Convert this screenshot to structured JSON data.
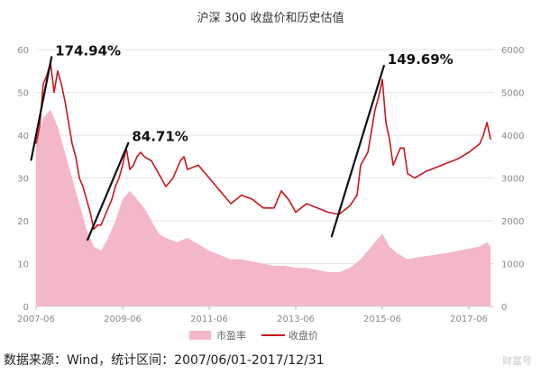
{
  "chart_data": {
    "type": "area",
    "title": "沪深 300 收盘价和历史估值",
    "x_ticks": [
      "2007-06",
      "2009-06",
      "2011-06",
      "2013-06",
      "2015-06",
      "2017-06"
    ],
    "x_range": [
      "2007-06-01",
      "2017-12-31"
    ],
    "y_left": {
      "min": 0,
      "max": 60,
      "ticks": [
        0,
        10,
        20,
        30,
        40,
        50,
        60
      ]
    },
    "y_right": {
      "min": 0,
      "max": 6000,
      "ticks": [
        0,
        1000,
        2000,
        3000,
        4000,
        5000,
        6000
      ]
    },
    "legend": {
      "placement": "bottom-center"
    },
    "grid": true,
    "series": [
      {
        "name": "市盈率",
        "type": "area",
        "axis": "left",
        "color": "#f4b7c7",
        "points": [
          [
            "2007-06",
            38
          ],
          [
            "2007-08",
            44
          ],
          [
            "2007-10",
            46
          ],
          [
            "2007-12",
            42
          ],
          [
            "2008-02",
            36
          ],
          [
            "2008-04",
            30
          ],
          [
            "2008-06",
            24
          ],
          [
            "2008-08",
            18
          ],
          [
            "2008-10",
            14
          ],
          [
            "2008-12",
            13
          ],
          [
            "2009-02",
            16
          ],
          [
            "2009-04",
            20
          ],
          [
            "2009-06",
            25
          ],
          [
            "2009-08",
            27
          ],
          [
            "2009-10",
            25
          ],
          [
            "2009-12",
            23
          ],
          [
            "2010-02",
            20
          ],
          [
            "2010-04",
            17
          ],
          [
            "2010-06",
            16
          ],
          [
            "2010-09",
            15
          ],
          [
            "2010-12",
            16
          ],
          [
            "2011-03",
            14.5
          ],
          [
            "2011-06",
            13
          ],
          [
            "2011-09",
            12
          ],
          [
            "2011-12",
            11
          ],
          [
            "2012-03",
            11
          ],
          [
            "2012-06",
            10.5
          ],
          [
            "2012-09",
            10
          ],
          [
            "2012-12",
            9.5
          ],
          [
            "2013-03",
            9.5
          ],
          [
            "2013-06",
            9
          ],
          [
            "2013-09",
            9
          ],
          [
            "2013-12",
            8.5
          ],
          [
            "2014-03",
            8
          ],
          [
            "2014-06",
            8
          ],
          [
            "2014-09",
            9
          ],
          [
            "2014-12",
            11
          ],
          [
            "2015-03",
            14
          ],
          [
            "2015-06",
            17
          ],
          [
            "2015-08",
            14
          ],
          [
            "2015-10",
            12.5
          ],
          [
            "2016-01",
            11
          ],
          [
            "2016-04",
            11.5
          ],
          [
            "2016-08",
            12
          ],
          [
            "2016-12",
            12.5
          ],
          [
            "2017-03",
            13
          ],
          [
            "2017-06",
            13.5
          ],
          [
            "2017-09",
            14
          ],
          [
            "2017-11",
            15
          ],
          [
            "2017-12",
            14
          ]
        ]
      },
      {
        "name": "收盘价",
        "type": "line",
        "axis": "right",
        "color": "#c8161d",
        "points": [
          [
            "2007-06",
            3800
          ],
          [
            "2007-07",
            4200
          ],
          [
            "2007-08",
            5200
          ],
          [
            "2007-09",
            5400
          ],
          [
            "2007-10",
            5700
          ],
          [
            "2007-11",
            5000
          ],
          [
            "2007-12",
            5500
          ],
          [
            "2008-01",
            5200
          ],
          [
            "2008-02",
            4800
          ],
          [
            "2008-03",
            4300
          ],
          [
            "2008-04",
            3800
          ],
          [
            "2008-05",
            3500
          ],
          [
            "2008-06",
            3000
          ],
          [
            "2008-07",
            2800
          ],
          [
            "2008-08",
            2500
          ],
          [
            "2008-09",
            2200
          ],
          [
            "2008-10",
            1800
          ],
          [
            "2008-11",
            1900
          ],
          [
            "2008-12",
            1900
          ],
          [
            "2009-01",
            2100
          ],
          [
            "2009-02",
            2300
          ],
          [
            "2009-03",
            2500
          ],
          [
            "2009-04",
            2800
          ],
          [
            "2009-05",
            3000
          ],
          [
            "2009-06",
            3300
          ],
          [
            "2009-07",
            3700
          ],
          [
            "2009-08",
            3200
          ],
          [
            "2009-09",
            3300
          ],
          [
            "2009-10",
            3500
          ],
          [
            "2009-11",
            3600
          ],
          [
            "2009-12",
            3500
          ],
          [
            "2010-02",
            3400
          ],
          [
            "2010-04",
            3100
          ],
          [
            "2010-06",
            2800
          ],
          [
            "2010-08",
            3000
          ],
          [
            "2010-10",
            3400
          ],
          [
            "2010-11",
            3500
          ],
          [
            "2010-12",
            3200
          ],
          [
            "2011-03",
            3300
          ],
          [
            "2011-06",
            3000
          ],
          [
            "2011-09",
            2700
          ],
          [
            "2011-12",
            2400
          ],
          [
            "2012-03",
            2600
          ],
          [
            "2012-06",
            2500
          ],
          [
            "2012-09",
            2300
          ],
          [
            "2012-12",
            2300
          ],
          [
            "2013-02",
            2700
          ],
          [
            "2013-04",
            2500
          ],
          [
            "2013-06",
            2200
          ],
          [
            "2013-09",
            2400
          ],
          [
            "2013-12",
            2300
          ],
          [
            "2014-03",
            2200
          ],
          [
            "2014-06",
            2150
          ],
          [
            "2014-09",
            2350
          ],
          [
            "2014-11",
            2600
          ],
          [
            "2014-12",
            3300
          ],
          [
            "2015-02",
            3600
          ],
          [
            "2015-04",
            4600
          ],
          [
            "2015-05",
            4900
          ],
          [
            "2015-06",
            5300
          ],
          [
            "2015-07",
            4300
          ],
          [
            "2015-08",
            3900
          ],
          [
            "2015-09",
            3300
          ],
          [
            "2015-11",
            3700
          ],
          [
            "2015-12",
            3700
          ],
          [
            "2016-01",
            3100
          ],
          [
            "2016-03",
            3000
          ],
          [
            "2016-06",
            3150
          ],
          [
            "2016-09",
            3250
          ],
          [
            "2016-12",
            3350
          ],
          [
            "2017-03",
            3450
          ],
          [
            "2017-06",
            3600
          ],
          [
            "2017-09",
            3800
          ],
          [
            "2017-10",
            4000
          ],
          [
            "2017-11",
            4300
          ],
          [
            "2017-12",
            3900
          ]
        ]
      }
    ],
    "annotations": [
      {
        "text": "174.94%",
        "from": [
          "2007-06",
          4000
        ],
        "to": [
          "2007-10",
          5700
        ]
      },
      {
        "text": "84.71%",
        "from": [
          "2008-11",
          2100
        ],
        "to": [
          "2009-07",
          3700
        ]
      },
      {
        "text": "149.69%",
        "from": [
          "2014-06",
          2200
        ],
        "to": [
          "2015-06",
          5500
        ]
      }
    ]
  },
  "source_text": "数据来源：Wind，统计区间：2007/06/01-2017/12/31",
  "watermark_text": "财富号"
}
